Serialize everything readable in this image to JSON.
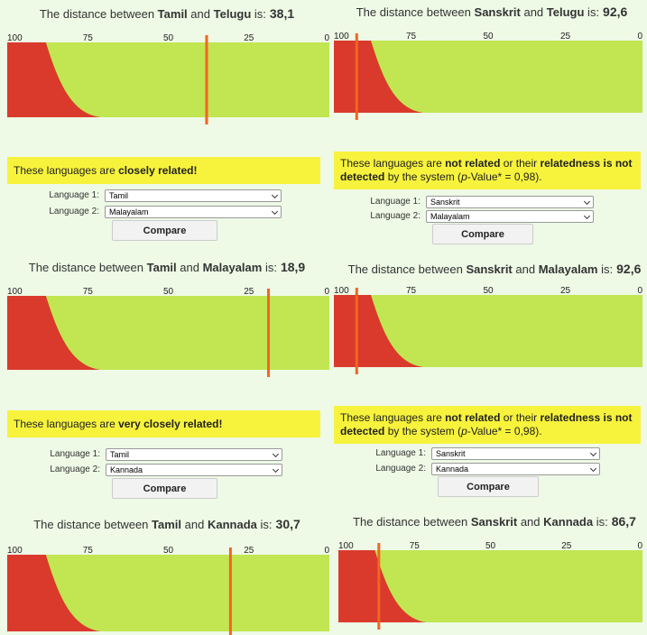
{
  "chart_axis": {
    "xlim": [
      100,
      0
    ],
    "xticks": [
      100,
      75,
      50,
      25,
      0
    ]
  },
  "panels": [
    {
      "title": {
        "prefix": "The distance between",
        "lang1": "Tamil",
        "conj": "and",
        "lang2": "Telugu",
        "suffix": "is:"
      },
      "distance": {
        "value": 38.1,
        "label": "38,1"
      },
      "result": [
        {
          "text": "These languages are "
        },
        {
          "text": "closely related!",
          "bold": true
        }
      ],
      "form": {
        "label1": "Language 1:",
        "value1": "Tamil",
        "label2": "Language 2:",
        "value2": "Malayalam",
        "button": "Compare"
      }
    },
    {
      "title": {
        "prefix": "The distance between",
        "lang1": "Sanskrit",
        "conj": "and",
        "lang2": "Telugu",
        "suffix": "is:"
      },
      "distance": {
        "value": 92.6,
        "label": "92,6"
      },
      "result": [
        {
          "text": "These languages are "
        },
        {
          "text": "not related",
          "bold": true
        },
        {
          "text": " or their "
        },
        {
          "text": "relatedness is not detected",
          "bold": true
        },
        {
          "text": " by the system ("
        },
        {
          "text": "p",
          "italic": true
        },
        {
          "text": "-Value* = 0,98)."
        }
      ],
      "form": {
        "label1": "Language 1:",
        "value1": "Sanskrit",
        "label2": "Language 2:",
        "value2": "Malayalam",
        "button": "Compare"
      }
    },
    {
      "title": {
        "prefix": "The distance between",
        "lang1": "Tamil",
        "conj": "and",
        "lang2": "Malayalam",
        "suffix": "is:"
      },
      "distance": {
        "value": 18.9,
        "label": "18,9"
      },
      "result": [
        {
          "text": "These languages are "
        },
        {
          "text": "very closely related!",
          "bold": true
        }
      ],
      "form": {
        "label1": "Language 1:",
        "value1": "Tamil",
        "label2": "Language 2:",
        "value2": "Kannada",
        "button": "Compare"
      }
    },
    {
      "title": {
        "prefix": "The distance between",
        "lang1": "Sanskrit",
        "conj": "and",
        "lang2": "Malayalam",
        "suffix": "is:"
      },
      "distance": {
        "value": 92.6,
        "label": "92,6"
      },
      "result": [
        {
          "text": "These languages are "
        },
        {
          "text": "not related",
          "bold": true
        },
        {
          "text": " or their "
        },
        {
          "text": "relatedness is not detected",
          "bold": true
        },
        {
          "text": " by the system ("
        },
        {
          "text": "p",
          "italic": true
        },
        {
          "text": "-Value* = 0,98)."
        }
      ],
      "form": {
        "label1": "Language 1:",
        "value1": "Sanskrit",
        "label2": "Language 2:",
        "value2": "Kannada",
        "button": "Compare"
      }
    },
    {
      "title": {
        "prefix": "The distance between",
        "lang1": "Tamil",
        "conj": "and",
        "lang2": "Kannada",
        "suffix": "is:"
      },
      "distance": {
        "value": 30.7,
        "label": "30,7"
      }
    },
    {
      "title": {
        "prefix": "The distance between",
        "lang1": "Sanskrit",
        "conj": "and",
        "lang2": "Kannada",
        "suffix": "is:"
      },
      "distance": {
        "value": 86.7,
        "label": "86,7"
      }
    }
  ]
}
